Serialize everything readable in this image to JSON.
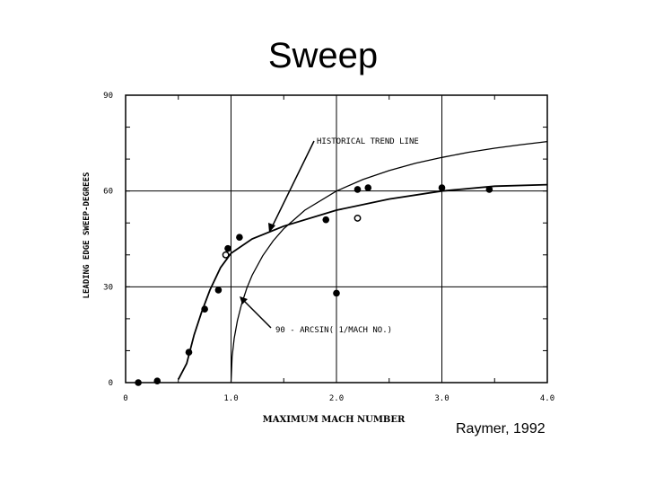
{
  "title": "Sweep",
  "citation": "Raymer, 1992",
  "chart_data": {
    "type": "scatter",
    "xlabel": "MAXIMUM MACH NUMBER",
    "ylabel": "LEADING EDGE SWEEP-DEGREES",
    "xlim": [
      0,
      4.0
    ],
    "ylim": [
      0,
      90
    ],
    "xticks": [
      "0",
      "1.0",
      "2.0",
      "3.0",
      "4.0"
    ],
    "yticks": [
      "0",
      "30",
      "60",
      "90"
    ],
    "grid": true,
    "series": [
      {
        "marker": "filled-circle",
        "points": [
          [
            0.12,
            0
          ],
          [
            0.3,
            0.5
          ],
          [
            0.6,
            9.5
          ],
          [
            0.75,
            23
          ],
          [
            0.88,
            29
          ],
          [
            0.97,
            42
          ],
          [
            1.08,
            45.5
          ],
          [
            1.9,
            51
          ],
          [
            2.0,
            28
          ],
          [
            2.2,
            60.5
          ],
          [
            2.3,
            61
          ],
          [
            3.0,
            61
          ],
          [
            3.45,
            60.5
          ]
        ]
      },
      {
        "marker": "open-circle",
        "points": [
          [
            0.95,
            40
          ],
          [
            2.2,
            51.5
          ]
        ]
      },
      {
        "type": "line",
        "points": [
          [
            0.5,
            1
          ],
          [
            0.58,
            6
          ],
          [
            0.65,
            15
          ],
          [
            0.72,
            22
          ],
          [
            0.8,
            29
          ],
          [
            0.9,
            36
          ],
          [
            1.0,
            40.5
          ],
          [
            1.2,
            45
          ],
          [
            1.5,
            49
          ],
          [
            2.0,
            54
          ],
          [
            2.5,
            57.5
          ],
          [
            3.0,
            60
          ],
          [
            3.5,
            61.5
          ],
          [
            4.0,
            62
          ]
        ]
      },
      {
        "type": "line",
        "function": "90 - arcsin(1/M)",
        "points": [
          [
            1.0,
            0
          ],
          [
            1.01,
            8.1
          ],
          [
            1.03,
            13.8
          ],
          [
            1.06,
            19.4
          ],
          [
            1.1,
            24.6
          ],
          [
            1.15,
            29.6
          ],
          [
            1.2,
            33.6
          ],
          [
            1.3,
            39.7
          ],
          [
            1.4,
            44.4
          ],
          [
            1.5,
            48.2
          ],
          [
            1.7,
            54
          ],
          [
            2.0,
            60
          ],
          [
            2.25,
            63.6
          ],
          [
            2.5,
            66.4
          ],
          [
            2.75,
            68.7
          ],
          [
            3.0,
            70.5
          ],
          [
            3.25,
            72.1
          ],
          [
            3.5,
            73.4
          ],
          [
            3.75,
            74.5
          ],
          [
            4.0,
            75.5
          ]
        ]
      }
    ],
    "annotations": [
      "HISTORICAL TREND LINE",
      "90 - ARCSIN( 1/MACH NO.)"
    ]
  }
}
